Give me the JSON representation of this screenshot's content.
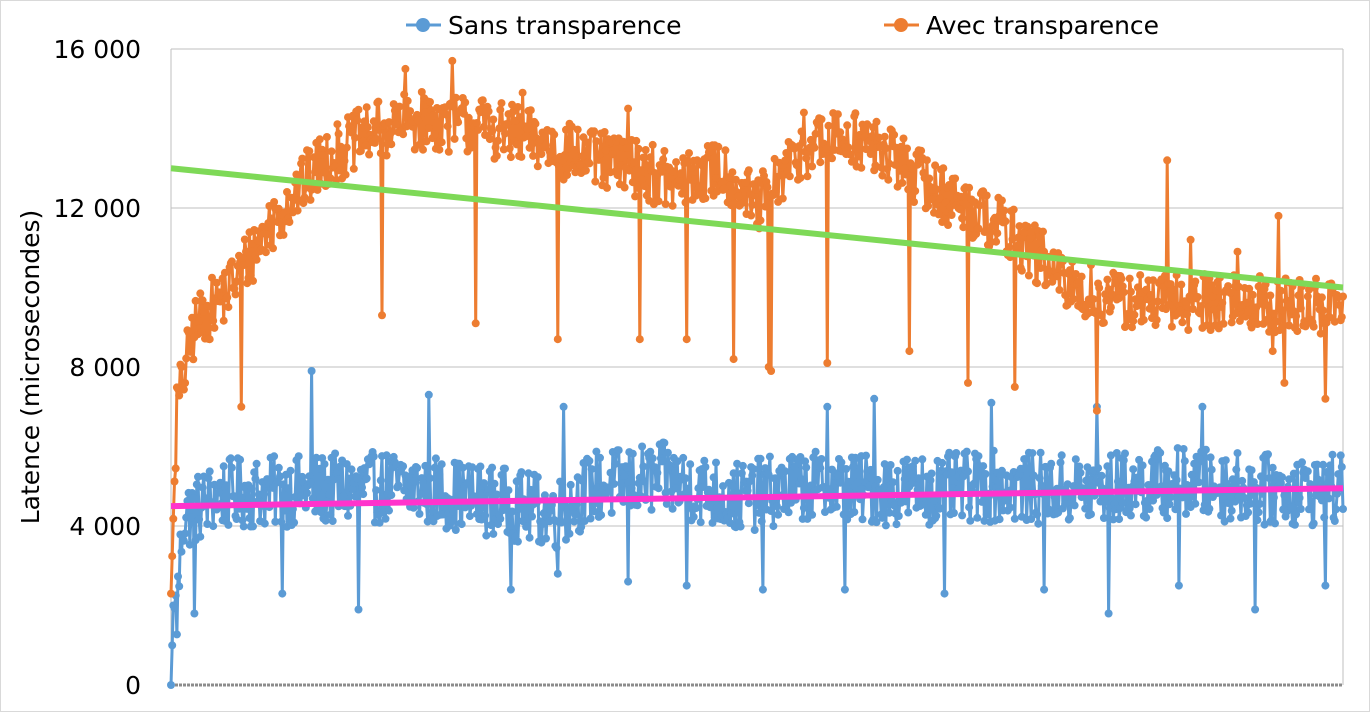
{
  "chart_data": {
    "type": "line",
    "ylabel": "Latence (microsecondes)",
    "xlabel": "",
    "ylim": [
      0,
      16000
    ],
    "yticks": [
      0,
      4000,
      8000,
      12000,
      16000
    ],
    "ytick_labels": [
      "0",
      "4 000",
      "8 000",
      "12 000",
      "16 000"
    ],
    "x_range": [
      0,
      1000
    ],
    "grid": "horizontal",
    "legend_position": "top",
    "series": [
      {
        "name": "Sans transparence",
        "color": "#5b9bd5",
        "profile": [
          [
            0,
            0
          ],
          [
            2,
            2000
          ],
          [
            5,
            1800
          ],
          [
            10,
            4200
          ],
          [
            40,
            4800
          ],
          [
            120,
            4900
          ],
          [
            200,
            5000
          ],
          [
            280,
            4600
          ],
          [
            330,
            4300
          ],
          [
            360,
            5000
          ],
          [
            420,
            5200
          ],
          [
            480,
            4700
          ],
          [
            540,
            5000
          ],
          [
            620,
            4900
          ],
          [
            700,
            5000
          ],
          [
            780,
            4900
          ],
          [
            860,
            5100
          ],
          [
            940,
            4900
          ],
          [
            1000,
            4900
          ]
        ],
        "noise": 1200,
        "dips": [
          [
            20,
            1800
          ],
          [
            95,
            2300
          ],
          [
            160,
            1900
          ],
          [
            290,
            2400
          ],
          [
            330,
            2800
          ],
          [
            390,
            2600
          ],
          [
            440,
            2500
          ],
          [
            505,
            2400
          ],
          [
            575,
            2400
          ],
          [
            660,
            2300
          ],
          [
            745,
            2400
          ],
          [
            800,
            1800
          ],
          [
            860,
            2500
          ],
          [
            925,
            1900
          ],
          [
            985,
            2500
          ]
        ],
        "spikes": [
          [
            120,
            7900
          ],
          [
            220,
            7300
          ],
          [
            335,
            7000
          ],
          [
            560,
            7000
          ],
          [
            600,
            7200
          ],
          [
            700,
            7100
          ],
          [
            790,
            7000
          ],
          [
            880,
            7000
          ]
        ]
      },
      {
        "name": "Avec transparence",
        "color": "#ed7d31",
        "profile": [
          [
            0,
            2300
          ],
          [
            5,
            7000
          ],
          [
            20,
            9000
          ],
          [
            50,
            10000
          ],
          [
            90,
            11800
          ],
          [
            130,
            13200
          ],
          [
            170,
            13900
          ],
          [
            210,
            14200
          ],
          [
            260,
            14100
          ],
          [
            300,
            13800
          ],
          [
            350,
            13300
          ],
          [
            400,
            13000
          ],
          [
            430,
            12600
          ],
          [
            470,
            13000
          ],
          [
            500,
            12000
          ],
          [
            540,
            13500
          ],
          [
            580,
            13800
          ],
          [
            620,
            13200
          ],
          [
            660,
            12300
          ],
          [
            700,
            11700
          ],
          [
            740,
            10800
          ],
          [
            760,
            10100
          ],
          [
            800,
            9700
          ],
          [
            850,
            9600
          ],
          [
            900,
            9700
          ],
          [
            950,
            9500
          ],
          [
            1000,
            9500
          ]
        ],
        "noise": 1000,
        "dips": [
          [
            60,
            7000
          ],
          [
            180,
            9300
          ],
          [
            260,
            9100
          ],
          [
            300,
            9100
          ],
          [
            330,
            8700
          ],
          [
            400,
            8700
          ],
          [
            440,
            8700
          ],
          [
            480,
            8200
          ],
          [
            510,
            8000
          ],
          [
            512,
            7900
          ],
          [
            560,
            8100
          ],
          [
            630,
            8400
          ],
          [
            680,
            7600
          ],
          [
            720,
            7500
          ],
          [
            790,
            6900
          ],
          [
            870,
            6900
          ],
          [
            940,
            8400
          ],
          [
            950,
            7600
          ],
          [
            985,
            7200
          ]
        ],
        "spikes": [
          [
            200,
            15500
          ],
          [
            240,
            15700
          ],
          [
            300,
            14900
          ],
          [
            390,
            14500
          ],
          [
            540,
            14400
          ],
          [
            850,
            13200
          ],
          [
            870,
            11200
          ],
          [
            910,
            10900
          ],
          [
            945,
            11800
          ],
          [
            990,
            10100
          ]
        ]
      }
    ],
    "trendlines": [
      {
        "color": "#7ed957",
        "start": [
          0,
          13000
        ],
        "end": [
          1000,
          10000
        ]
      },
      {
        "color": "#ff33cc",
        "start": [
          0,
          4500
        ],
        "end": [
          1000,
          4950
        ]
      }
    ]
  }
}
